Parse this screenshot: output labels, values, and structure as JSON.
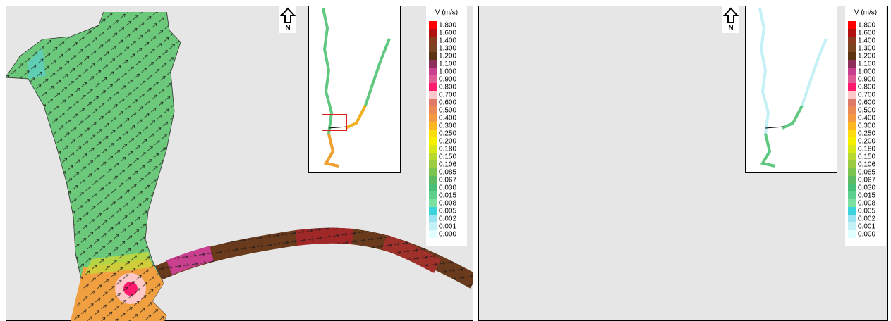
{
  "north_label": "N",
  "legend": {
    "title": "V (m/s)",
    "entries": [
      {
        "label": "1.800",
        "color": "#ff0000"
      },
      {
        "label": "1.600",
        "color": "#b01010"
      },
      {
        "label": "1.400",
        "color": "#8a3a1e"
      },
      {
        "label": "1.300",
        "color": "#7a4420"
      },
      {
        "label": "1.200",
        "color": "#5c3414"
      },
      {
        "label": "1.100",
        "color": "#8e2e5a"
      },
      {
        "label": "1.000",
        "color": "#c8408e"
      },
      {
        "label": "0.900",
        "color": "#e05a96"
      },
      {
        "label": "0.800",
        "color": "#ff1a6e"
      },
      {
        "label": "0.700",
        "color": "#ffc8c8"
      },
      {
        "label": "0.600",
        "color": "#e07a68"
      },
      {
        "label": "0.500",
        "color": "#ec8a56"
      },
      {
        "label": "0.400",
        "color": "#f49a40"
      },
      {
        "label": "0.300",
        "color": "#fcb820"
      },
      {
        "label": "0.250",
        "color": "#ffdc10"
      },
      {
        "label": "0.200",
        "color": "#f4f000"
      },
      {
        "label": "0.180",
        "color": "#d8e818"
      },
      {
        "label": "0.150",
        "color": "#b8da30"
      },
      {
        "label": "0.106",
        "color": "#9ccc40"
      },
      {
        "label": "0.085",
        "color": "#7cc450"
      },
      {
        "label": "0.067",
        "color": "#5cbc64"
      },
      {
        "label": "0.030",
        "color": "#48c078"
      },
      {
        "label": "0.015",
        "color": "#5cd08c"
      },
      {
        "label": "0.008",
        "color": "#7ce0a0"
      },
      {
        "label": "0.005",
        "color": "#3cd4dc"
      },
      {
        "label": "0.002",
        "color": "#9ce4f0"
      },
      {
        "label": "0.001",
        "color": "#c4f0f8"
      },
      {
        "label": "0.000",
        "color": "#e0ffff"
      }
    ]
  }
}
